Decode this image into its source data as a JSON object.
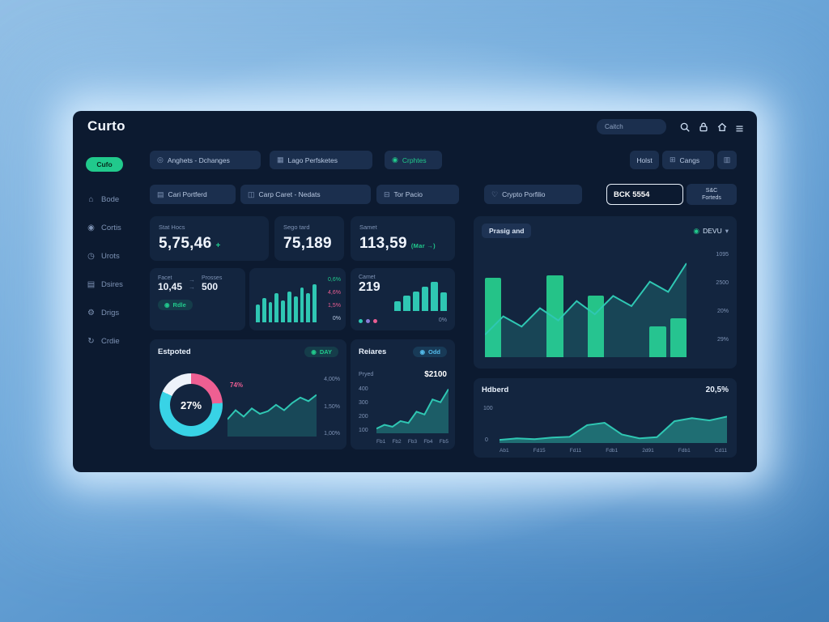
{
  "colors": {
    "bg": "#0c1a30",
    "card": "#13253f",
    "chip": "#1b2f4e",
    "green": "#21c98c",
    "teal": "#2fc7b3",
    "cyan": "#38d3e6",
    "pink": "#ea5d92",
    "purple": "#8b7bd8",
    "muted": "#7e93b5"
  },
  "topbar": {
    "logo": "Curto",
    "search_placeholder": "Caitch"
  },
  "sidebar": {
    "pill": "Cufo",
    "items": [
      {
        "glyph": "⌂",
        "label": "Bode"
      },
      {
        "glyph": "◉",
        "label": "Cortis"
      },
      {
        "glyph": "◷",
        "label": "Urots"
      },
      {
        "glyph": "▤",
        "label": "Dsires"
      },
      {
        "glyph": "⚙",
        "label": "Drigs"
      },
      {
        "glyph": "↻",
        "label": "Crdie"
      }
    ]
  },
  "filters": {
    "row1": [
      {
        "glyph": "◎",
        "label": "Anghets - Dchanges"
      },
      {
        "glyph": "▦",
        "label": "Lago Perfsketes"
      },
      {
        "glyph": "◉",
        "label": "Crphtes"
      }
    ],
    "row1_right": [
      {
        "label": "Holst"
      },
      {
        "glyph": "⊞",
        "label": "Cangs"
      },
      {
        "glyph": "▥",
        "label": ""
      }
    ],
    "row2": [
      {
        "glyph": "▤",
        "label": "Cari Portferd"
      },
      {
        "glyph": "◫",
        "label": "Carp Caret - Nedats"
      },
      {
        "glyph": "⊟",
        "label": "Tor Pacio"
      },
      {
        "glyph": "♡",
        "label": "Crypto Porfilio"
      }
    ],
    "ticker_value": "BCK 5554",
    "action_line1": "S&C",
    "action_line2": "Forteds"
  },
  "stats": [
    {
      "label": "Stat Hocs",
      "value": "5,75,46",
      "delta": "+"
    },
    {
      "label": "Sego tard",
      "value": "75,189",
      "delta": ""
    },
    {
      "label": "Samet",
      "value": "113,59",
      "delta": "(Mar →)"
    }
  ],
  "mini": {
    "a": {
      "label1": "Facet",
      "value1": "10,45",
      "arrow": "→",
      "label2": "Prosses",
      "value2": "500",
      "badge_glyph": "◉",
      "badge": "Rdle"
    },
    "b": {
      "pcts": [
        {
          "text": "0,6%"
        },
        {
          "text": "4,6%"
        },
        {
          "text": "1,5%"
        },
        {
          "text": "0%"
        }
      ]
    },
    "c": {
      "label": "Camet",
      "value": "219",
      "footer": "0%"
    }
  },
  "main_panel": {
    "title": "Prasig and",
    "dropdown_glyph": "◉",
    "dropdown": "DEVU",
    "caret": "▾",
    "axis": [
      "1095",
      "2500",
      "20%",
      "29%"
    ]
  },
  "estpoted": {
    "title": "Estpoted",
    "badge_glyph": "◉",
    "badge": "DAY",
    "donut_label": "27%",
    "pink_label": "74%",
    "axis": [
      "4,00%",
      "1,50%",
      "1,00%"
    ]
  },
  "reiares": {
    "title": "Reiares",
    "badge_glyph": "◉",
    "badge": "Odd",
    "row_label": "Pryed",
    "row_value": "$2100",
    "y_axis": [
      "400",
      "300",
      "200",
      "100"
    ],
    "x_axis": [
      "Fb1",
      "Fb2",
      "Fb3",
      "Fb4",
      "Fb5"
    ]
  },
  "hdberd": {
    "title": "Hdberd",
    "value": "20,5%",
    "y_top": "100",
    "y_bottom": "0",
    "x_axis": [
      "Ab1",
      "Fd15",
      "Fd11",
      "Fdb1",
      "2d91",
      "Fdb1",
      "Cd11"
    ]
  },
  "chart_data": {
    "note": "see charts key"
  },
  "charts": {
    "mini_bars": {
      "type": "bar",
      "color": "#2fc7b3",
      "values": [
        40,
        55,
        45,
        65,
        50,
        70,
        58,
        78,
        66,
        85
      ]
    },
    "camet_bars": {
      "type": "bar",
      "color": "#2fc7b3",
      "values": [
        32,
        48,
        62,
        78,
        92,
        58
      ]
    },
    "main_bars": {
      "type": "bar",
      "color": "#25c388",
      "values": [
        78,
        0,
        0,
        80,
        0,
        60,
        0,
        0,
        30,
        38
      ]
    },
    "main_area": {
      "type": "area",
      "stroke": "#2fc7b3",
      "fill": "rgba(47,199,179,0.20)",
      "values": [
        22,
        40,
        30,
        48,
        36,
        55,
        42,
        60,
        50,
        74,
        64,
        92
      ]
    },
    "donut": {
      "type": "donut",
      "segments": [
        {
          "color": "#ee5f92",
          "pct": 24
        },
        {
          "color": "#38d3e6",
          "pct": 58
        },
        {
          "color": "#eef3fa",
          "pct": 18
        }
      ]
    },
    "est_area": {
      "type": "area",
      "stroke": "#2fc7b3",
      "fill": "rgba(47,199,179,0.22)",
      "values": [
        38,
        58,
        44,
        62,
        50,
        56,
        70,
        58,
        74,
        86,
        78,
        92
      ]
    },
    "reiares_area": {
      "type": "area",
      "stroke": "#2fc7b3",
      "fill": "rgba(47,199,179,0.35)",
      "values": [
        10,
        18,
        14,
        26,
        22,
        46,
        40,
        72,
        66,
        94
      ]
    },
    "hdberd_area": {
      "type": "area",
      "stroke": "#2fc7b3",
      "fill": "rgba(47,199,179,0.45)",
      "values": [
        8,
        12,
        10,
        14,
        16,
        46,
        52,
        22,
        12,
        15,
        56,
        64,
        58,
        68
      ]
    }
  }
}
